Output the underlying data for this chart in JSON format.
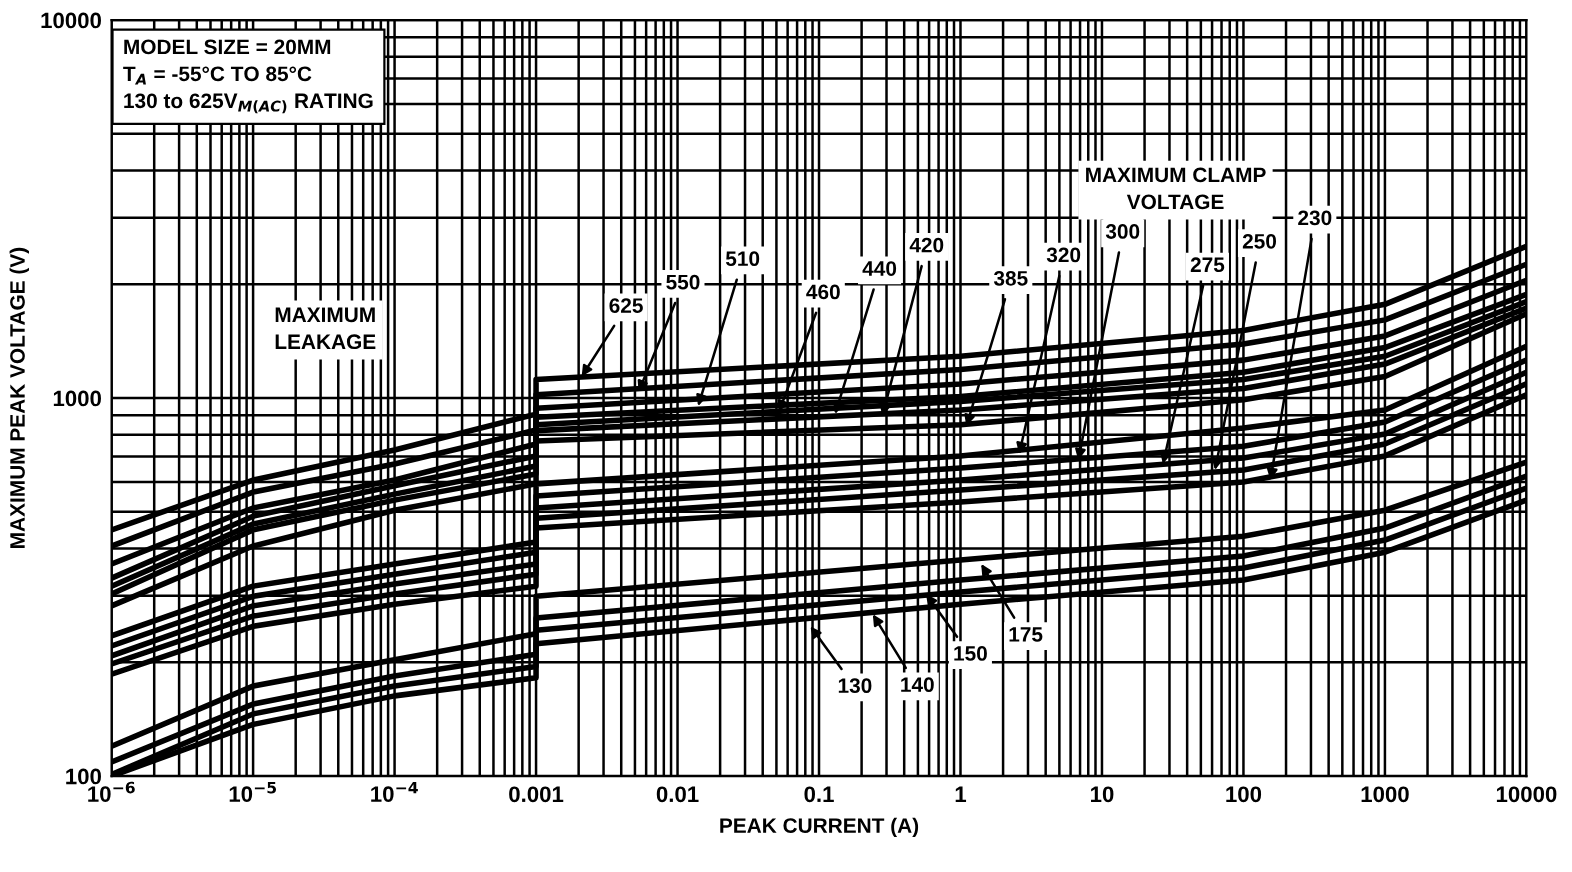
{
  "chart_data": {
    "type": "line",
    "xlabel": "PEAK CURRENT (A)",
    "ylabel": "MAXIMUM PEAK VOLTAGE (V)",
    "log": "xy",
    "grid": true,
    "xlim": [
      1e-06,
      10000
    ],
    "ylim": [
      100,
      10000
    ],
    "xticks": [
      {
        "value": 1e-06,
        "label": "10$^{−6}$"
      },
      {
        "value": 1e-05,
        "label": "10$^{−5}$"
      },
      {
        "value": 0.0001,
        "label": "10$^{−4}$"
      },
      0.001,
      0.01,
      0.1,
      1,
      10,
      100,
      1000,
      10000
    ],
    "yticks": [
      100,
      1000,
      10000
    ],
    "annotations": [
      "MODEL SIZE = 20MM\nT$_{A}$ = -55°C TO 85°C\n130 to 625V$_{M(AC)}$ RATING",
      "MAXIMUM\nLEAKAGE",
      "MAXIMUM CLAMP\nVOLTAGE",
      {
        "text": "625",
        "x": 0.0021,
        "y": 1140
      },
      {
        "text": "550",
        "x": 0.0053,
        "y": 1037
      },
      {
        "text": "510",
        "x": 0.014,
        "y": 952
      },
      {
        "text": "460",
        "x": 0.052,
        "y": 918
      },
      {
        "text": "440",
        "x": 0.13,
        "y": 907
      },
      {
        "text": "420",
        "x": 0.28,
        "y": 896
      },
      {
        "text": "385",
        "x": 1.1,
        "y": 843
      },
      {
        "text": "320",
        "x": 2.6,
        "y": 711
      },
      {
        "text": "300",
        "x": 6.8,
        "y": 685
      },
      {
        "text": "275",
        "x": 27,
        "y": 669
      },
      {
        "text": "250",
        "x": 63,
        "y": 645
      },
      {
        "text": "230",
        "x": 155,
        "y": 607
      },
      {
        "text": "130",
        "x": 0.087,
        "y": 249
      },
      {
        "text": "140",
        "x": 0.24,
        "y": 268
      },
      {
        "text": "150",
        "x": 0.57,
        "y": 303
      },
      {
        "text": "175",
        "x": 1.4,
        "y": 364
      }
    ],
    "series": [
      {
        "color": "#000000",
        "x": [
          1e-06,
          1e-05,
          0.0001,
          0.001,
          0.001,
          1,
          100,
          1000,
          10000
        ],
        "values": [
          448,
          607,
          729,
          907,
          1120,
          1290,
          1510,
          1770,
          2520
        ]
      },
      {
        "color": "#000000",
        "x": [
          1e-06,
          1e-05,
          0.0001,
          0.001,
          0.001,
          1,
          100,
          1000,
          10000
        ],
        "values": [
          406,
          564,
          669,
          823,
          1020,
          1190,
          1390,
          1610,
          2260
        ]
      },
      {
        "color": "#000000",
        "x": [
          1e-06,
          1e-05,
          0.0001,
          0.001,
          0.001,
          1,
          100,
          1000,
          10000
        ],
        "values": [
          364,
          512,
          607,
          756,
          940,
          1090,
          1260,
          1460,
          2050
        ]
      },
      {
        "color": "#000000",
        "x": [
          1e-06,
          1e-05,
          0.0001,
          0.001,
          0.001,
          1,
          100,
          1000,
          10000
        ],
        "values": [
          334,
          487,
          586,
          703,
          890,
          1010,
          1170,
          1360,
          1880
        ]
      },
      {
        "color": "#000000",
        "x": [
          1e-06,
          1e-05,
          0.0001,
          0.001,
          0.001,
          1,
          100,
          1000,
          10000
        ],
        "values": [
          318,
          464,
          557,
          661,
          850,
          980,
          1120,
          1290,
          1800
        ]
      },
      {
        "color": "#000000",
        "x": [
          1e-06,
          1e-05,
          0.0001,
          0.001,
          0.001,
          1,
          100,
          1000,
          10000
        ],
        "values": [
          303,
          448,
          537,
          630,
          820,
          930,
          1060,
          1230,
          1730
        ]
      },
      {
        "color": "#000000",
        "x": [
          1e-06,
          1e-05,
          0.0001,
          0.001,
          0.001,
          1,
          100,
          1000,
          10000
        ],
        "values": [
          282,
          406,
          505,
          593,
          770,
          850,
          990,
          1140,
          1670
        ]
      },
      {
        "color": "#000000",
        "x": [
          1e-06,
          1e-05,
          0.0001,
          0.001,
          0.001,
          1,
          100,
          1000,
          10000
        ],
        "values": [
          235,
          318,
          364,
          416,
          593,
          703,
          833,
          930,
          1370
        ]
      },
      {
        "color": "#000000",
        "x": [
          1e-06,
          1e-05,
          0.0001,
          0.001,
          0.001,
          1,
          100,
          1000,
          10000
        ],
        "values": [
          221,
          299,
          342,
          391,
          551,
          653,
          746,
          864,
          1260
        ]
      },
      {
        "color": "#000000",
        "x": [
          1e-06,
          1e-05,
          0.0001,
          0.001,
          0.001,
          1,
          100,
          1000,
          10000
        ],
        "values": [
          208,
          282,
          322,
          364,
          512,
          607,
          694,
          803,
          1170
        ]
      },
      {
        "color": "#000000",
        "x": [
          1e-06,
          1e-05,
          0.0001,
          0.001,
          0.001,
          1,
          100,
          1000,
          10000
        ],
        "values": [
          198,
          265,
          303,
          342,
          481,
          571,
          645,
          756,
          1090
        ]
      },
      {
        "color": "#000000",
        "x": [
          1e-06,
          1e-05,
          0.0001,
          0.001,
          0.001,
          1,
          100,
          1000,
          10000
        ],
        "values": [
          186,
          249,
          285,
          318,
          453,
          531,
          600,
          703,
          1020
        ]
      },
      {
        "color": "#000000",
        "x": [
          1e-06,
          1e-05,
          0.0001,
          0.001,
          0.001,
          1,
          100,
          1000,
          10000
        ],
        "values": [
          120,
          173,
          203,
          238,
          299,
          373,
          431,
          505,
          677
        ]
      },
      {
        "color": "#000000",
        "x": [
          1e-06,
          1e-05,
          0.0001,
          0.001,
          0.001,
          1,
          100,
          1000,
          10000
        ],
        "values": [
          109,
          155,
          184,
          210,
          262,
          330,
          382,
          453,
          622
        ]
      },
      {
        "color": "#000000",
        "x": [
          1e-06,
          1e-05,
          0.0001,
          0.001,
          0.001,
          1,
          100,
          1000,
          10000
        ],
        "values": [
          101,
          146,
          173,
          195,
          243,
          307,
          355,
          421,
          578
        ]
      },
      {
        "color": "#000000",
        "x": [
          1e-06,
          1e-05,
          0.0001,
          0.001,
          0.001,
          1,
          100,
          1000,
          10000
        ],
        "values": [
          100,
          137,
          163,
          182,
          224,
          285,
          330,
          391,
          537
        ]
      }
    ]
  }
}
